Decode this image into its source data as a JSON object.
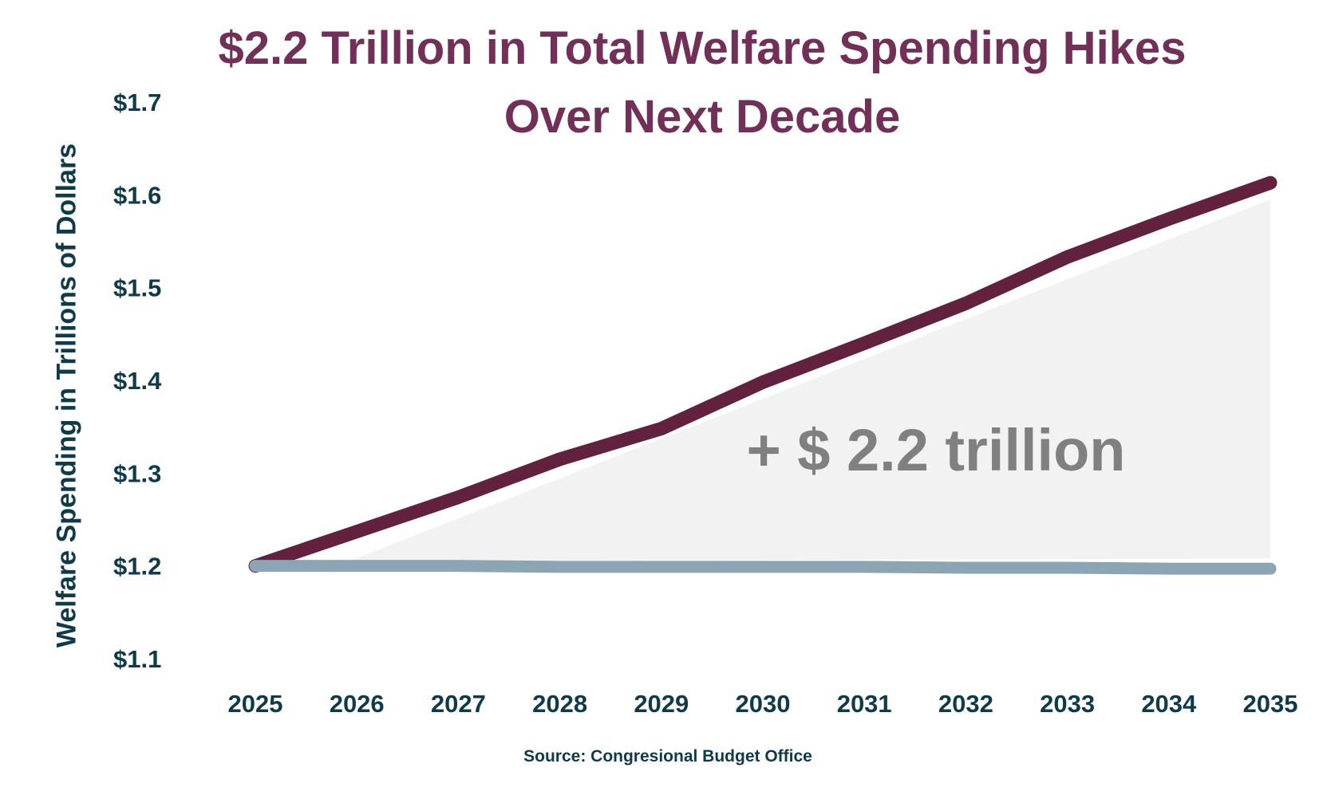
{
  "chart_data": {
    "type": "line",
    "title_lines": [
      "$2.2 Trillion in Total Welfare Spending Hikes",
      "Over Next Decade"
    ],
    "ylabel": "Welfare Spending in Trillions of Dollars",
    "xlabel": "",
    "source": "Source: Congresional Budget Office",
    "annotation": "+ $ 2.2 trillion",
    "x": [
      2025,
      2026,
      2027,
      2028,
      2029,
      2030,
      2031,
      2032,
      2033,
      2034,
      2035
    ],
    "x_tick_labels": [
      "2025",
      "2026",
      "2027",
      "2028",
      "2029",
      "2030",
      "2031",
      "2032",
      "2033",
      "2034",
      "2035"
    ],
    "y_tick_labels": [
      "$1.7",
      "$1.6",
      "$1.5",
      "$1.4",
      "$1.3",
      "$1.2",
      "$1.1"
    ],
    "y_ticks": [
      1.7,
      1.6,
      1.5,
      1.4,
      1.3,
      1.2,
      1.1
    ],
    "ylim": [
      1.1,
      1.7
    ],
    "grid": false,
    "series": [
      {
        "values": [
          1.2,
          1.237,
          1.274,
          1.315,
          1.348,
          1.398,
          1.44,
          1.483,
          1.533,
          1.574,
          1.613
        ],
        "color": "#61213f"
      },
      {
        "values": [
          1.2,
          1.2,
          1.2,
          1.199,
          1.199,
          1.199,
          1.199,
          1.198,
          1.198,
          1.197,
          1.197
        ],
        "color": "#8ca5b4"
      }
    ],
    "shaded_area_color": "#f2f2f2"
  },
  "colors": {
    "title": "#722f57",
    "text": "#0e3a4a",
    "annotation": "#808080"
  }
}
